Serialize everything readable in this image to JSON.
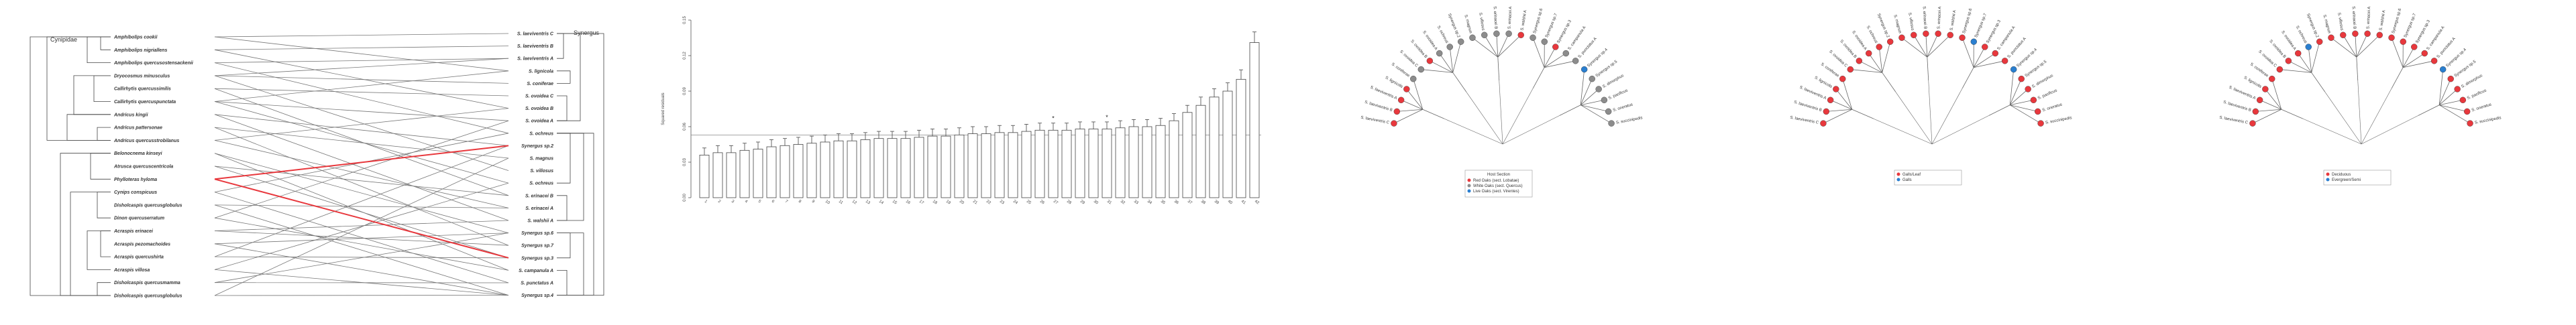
{
  "colors": {
    "red": "#e8383d",
    "grey": "#8c8c8c",
    "blue": "#2a7fd0",
    "line": "#444444",
    "link": "#777777"
  },
  "tanglegram": {
    "left_title": "Cynipidae",
    "right_title": "Synergus",
    "left_taxa": [
      "Amphibolips cookii",
      "Amphibolips nigriallens",
      "Amphibolips quercusostensackenii",
      "Dryocosmus minusculus",
      "Callirhytis quercussimilis",
      "Callirhytis quercuspunctata",
      "Andricus kingii",
      "Andricus pattersonae",
      "Andricus quercusstrobilanus",
      "Belonocnema kinseyi",
      "Atrusca quercuscentricola",
      "Phylloteras hyloma",
      "Cynips conspicuus",
      "Disholcaspis quercusglobulus",
      "Dinon quercuserratum",
      "Acraspis erinacei",
      "Acraspis pezomachoides",
      "Acraspis quercushirta",
      "Acraspis villosa",
      "Disholcaspis quercusmamma",
      "Disholcaspis quercusglobulus"
    ],
    "right_taxa": [
      "S. laeviventris C",
      "S. laeviventris B",
      "S. laeviventris A",
      "S. lignicola",
      "S. coniferae",
      "S. ovoidea C",
      "S. ovoidea B",
      "S. ovoidea A",
      "S. ochreus",
      "Synergus sp.2",
      "S. magnus",
      "S. villosus",
      "S. ochreus",
      "S. erinacei B",
      "S. erinacei A",
      "S. walshii A",
      "Synergus sp.6",
      "Synergus sp.7",
      "Synergus sp.3",
      "S. campanula A",
      "S. punctatus A",
      "Synergus sp.4"
    ]
  },
  "chart_data": {
    "type": "bar",
    "title": "",
    "xlabel": "",
    "ylabel": "Squared residuals",
    "ylim": [
      0,
      0.15
    ],
    "yticks": [
      "0.00",
      "0.03",
      "0.06",
      "0.09",
      "0.12",
      "0.15"
    ],
    "reference_line": 0.053,
    "categories": [
      "1",
      "2",
      "3",
      "4",
      "5",
      "6",
      "7",
      "8",
      "9",
      "10",
      "11",
      "12",
      "13",
      "14",
      "15",
      "16",
      "17",
      "18",
      "19",
      "20",
      "21",
      "22",
      "23",
      "24",
      "25",
      "26",
      "27",
      "28",
      "29",
      "30",
      "31",
      "32",
      "33",
      "34",
      "35",
      "36",
      "37",
      "38",
      "39",
      "40",
      "41",
      "42"
    ],
    "values": [
      0.036,
      0.038,
      0.038,
      0.04,
      0.041,
      0.043,
      0.044,
      0.045,
      0.046,
      0.047,
      0.048,
      0.048,
      0.049,
      0.05,
      0.05,
      0.05,
      0.051,
      0.052,
      0.052,
      0.053,
      0.054,
      0.054,
      0.055,
      0.055,
      0.056,
      0.057,
      0.057,
      0.057,
      0.058,
      0.058,
      0.058,
      0.059,
      0.06,
      0.06,
      0.061,
      0.065,
      0.072,
      0.078,
      0.085,
      0.09,
      0.1,
      0.131
    ],
    "errors": [
      0.006,
      0.006,
      0.006,
      0.006,
      0.006,
      0.006,
      0.006,
      0.006,
      0.006,
      0.006,
      0.006,
      0.006,
      0.006,
      0.006,
      0.006,
      0.006,
      0.006,
      0.006,
      0.006,
      0.006,
      0.006,
      0.006,
      0.006,
      0.006,
      0.006,
      0.006,
      0.006,
      0.006,
      0.006,
      0.006,
      0.006,
      0.006,
      0.006,
      0.006,
      0.006,
      0.006,
      0.006,
      0.007,
      0.007,
      0.007,
      0.008,
      0.009
    ],
    "significant_index": [
      26,
      30
    ]
  },
  "fan1": {
    "legend_title": "Host Section",
    "legend": [
      "Red Oaks (sect. Lobatae)",
      "White Oaks (sect. Quercus)",
      "Live Oaks (sect. Virentes)"
    ],
    "legend_colors": [
      "#e8383d",
      "#8c8c8c",
      "#2a7fd0"
    ]
  },
  "fan2": {
    "legend": [
      "Galls/Leaf",
      "Galls"
    ],
    "legend_colors": [
      "#e8383d",
      "#2a7fd0"
    ]
  },
  "fan3": {
    "legend": [
      "Deciduous",
      "Evergreen/Semi"
    ],
    "legend_colors": [
      "#e8383d",
      "#2a7fd0"
    ]
  },
  "fan_tips": [
    "S. laeviventris C",
    "S. laeviventris B",
    "S. laeviventris A",
    "S. lignicola",
    "S. coniferae",
    "S. ovoidea C",
    "S. ovoidea B",
    "S. ovoidea A",
    "S. ochreus",
    "Synergus sp.2",
    "S. magnus",
    "S. villosus",
    "S. erinacei B",
    "S. erinacei A",
    "S. walshii A",
    "Synergus sp.6",
    "Synergus sp.7",
    "Synergus sp.3",
    "S. campanula A",
    "S. punctatus A",
    "Synergus sp.4",
    "Synergus sp.5",
    "S. dimorphus",
    "S. pacificus",
    "S. oneratus",
    "S. succinipedis"
  ],
  "fan_states": {
    "fan1": [
      "r",
      "r",
      "r",
      "r",
      "g",
      "g",
      "r",
      "g",
      "g",
      "g",
      "g",
      "g",
      "g",
      "g",
      "r",
      "g",
      "g",
      "r",
      "g",
      "g",
      "b",
      "g",
      "g",
      "g",
      "g",
      "g"
    ],
    "fan2": [
      "r",
      "r",
      "r",
      "r",
      "r",
      "r",
      "r",
      "r",
      "r",
      "r",
      "r",
      "r",
      "r",
      "r",
      "r",
      "r",
      "b",
      "r",
      "r",
      "r",
      "b",
      "r",
      "r",
      "r",
      "r",
      "r"
    ],
    "fan3": [
      "r",
      "r",
      "r",
      "r",
      "r",
      "r",
      "r",
      "r",
      "b",
      "r",
      "r",
      "r",
      "r",
      "r",
      "r",
      "r",
      "r",
      "r",
      "r",
      "r",
      "b",
      "r",
      "r",
      "r",
      "r",
      "r"
    ]
  }
}
